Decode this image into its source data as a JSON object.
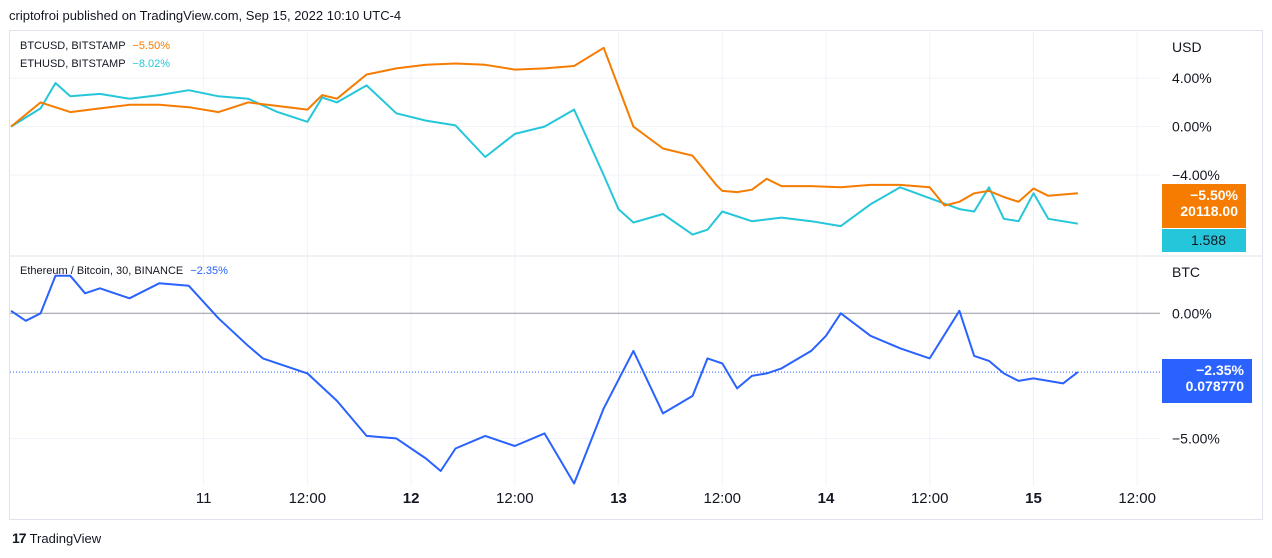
{
  "header": {
    "published": "criptofroi published on TradingView.com, Sep 15, 2022 10:10 UTC-4"
  },
  "footer": {
    "logo_text": "17",
    "brand": "TradingView"
  },
  "colors": {
    "btc": "#f57c00",
    "eth": "#26c6da",
    "ratio": "#2962ff",
    "grid": "#f0f3fa",
    "text": "#131722"
  },
  "top_pane": {
    "unit": "USD",
    "legend": [
      {
        "name": "BTCUSD, BITSTAMP",
        "change": "−5.50%",
        "color": "#f57c00"
      },
      {
        "name": "ETHUSD, BITSTAMP",
        "change": "−8.02%",
        "color": "#26c6da"
      }
    ],
    "tags": [
      {
        "line1": "−5.50%",
        "line2": "20118.00",
        "color": "#f57c00"
      },
      {
        "line1": "1.588",
        "color": "#26c6da"
      }
    ]
  },
  "bottom_pane": {
    "unit": "BTC",
    "legend": {
      "name": "Ethereum / Bitcoin, 30, BINANCE",
      "change": "−2.35%",
      "color": "#2962ff"
    },
    "tag": {
      "line1": "−2.35%",
      "line2": "0.078770",
      "color": "#2962ff"
    }
  },
  "x_axis_labels": [
    {
      "t": 0.65,
      "label": "11",
      "bold": false
    },
    {
      "t": 1.0,
      "label": "12:00",
      "bold": false
    },
    {
      "t": 1.35,
      "label": "12",
      "bold": true
    },
    {
      "t": 1.7,
      "label": "12:00",
      "bold": false
    },
    {
      "t": 2.05,
      "label": "13",
      "bold": true
    },
    {
      "t": 2.4,
      "label": "12:00",
      "bold": false
    },
    {
      "t": 2.75,
      "label": "14",
      "bold": true
    },
    {
      "t": 3.1,
      "label": "12:00",
      "bold": false
    },
    {
      "t": 3.45,
      "label": "15",
      "bold": true
    },
    {
      "t": 3.8,
      "label": "12:00",
      "bold": false
    }
  ],
  "chart_data": [
    {
      "type": "line",
      "title": "",
      "y_unit": "USD",
      "y_ticks": [
        "4.00%",
        "0.00%",
        "−4.00%"
      ],
      "y_tick_values": [
        4,
        0,
        -4
      ],
      "ylim": [
        -10.5,
        7.8
      ],
      "xlim": [
        0,
        3.85
      ],
      "grid": true,
      "legend_position": "top-left",
      "series": [
        {
          "name": "BTCUSD, BITSTAMP",
          "change": "−5.50%",
          "last_value": "20118.00",
          "x": [
            0,
            0.1,
            0.2,
            0.3,
            0.4,
            0.5,
            0.6,
            0.7,
            0.8,
            0.9,
            1.0,
            1.05,
            1.1,
            1.2,
            1.3,
            1.4,
            1.5,
            1.6,
            1.7,
            1.8,
            1.9,
            2.0,
            2.1,
            2.2,
            2.3,
            2.38,
            2.4,
            2.45,
            2.5,
            2.55,
            2.6,
            2.7,
            2.8,
            2.9,
            3.0,
            3.1,
            3.15,
            3.2,
            3.25,
            3.3,
            3.35,
            3.4,
            3.45,
            3.5,
            3.6
          ],
          "y": [
            0,
            2.0,
            1.2,
            1.5,
            1.8,
            1.8,
            1.6,
            1.2,
            2.0,
            1.7,
            1.4,
            2.6,
            2.3,
            4.3,
            4.8,
            5.1,
            5.2,
            5.1,
            4.7,
            4.8,
            5.0,
            6.5,
            0.0,
            -1.8,
            -2.4,
            -4.8,
            -5.3,
            -5.4,
            -5.2,
            -4.3,
            -4.9,
            -4.9,
            -5.0,
            -4.8,
            -4.8,
            -5.0,
            -6.5,
            -6.2,
            -5.5,
            -5.3,
            -5.8,
            -6.2,
            -5.1,
            -5.7,
            -5.5
          ]
        },
        {
          "name": "ETHUSD, BITSTAMP",
          "change": "−8.02%",
          "last_value": "1.588",
          "x": [
            0,
            0.1,
            0.15,
            0.2,
            0.3,
            0.4,
            0.5,
            0.6,
            0.7,
            0.8,
            0.9,
            1.0,
            1.05,
            1.1,
            1.2,
            1.3,
            1.4,
            1.5,
            1.6,
            1.7,
            1.8,
            1.9,
            2.0,
            2.05,
            2.1,
            2.2,
            2.3,
            2.35,
            2.4,
            2.5,
            2.6,
            2.7,
            2.8,
            2.9,
            3.0,
            3.1,
            3.2,
            3.25,
            3.3,
            3.35,
            3.4,
            3.45,
            3.5,
            3.6
          ],
          "y": [
            0,
            1.5,
            3.6,
            2.5,
            2.7,
            2.3,
            2.6,
            3.0,
            2.5,
            2.3,
            1.2,
            0.4,
            2.4,
            2.0,
            3.4,
            1.1,
            0.5,
            0.1,
            -2.5,
            -0.6,
            0.0,
            1.4,
            -4.0,
            -6.8,
            -7.9,
            -7.2,
            -8.9,
            -8.5,
            -7.0,
            -7.8,
            -7.5,
            -7.8,
            -8.2,
            -6.4,
            -5.0,
            -5.9,
            -6.8,
            -7.0,
            -5.0,
            -7.6,
            -7.8,
            -5.5,
            -7.6,
            -8.0
          ]
        }
      ],
      "markers": [
        {
          "series": "BTCUSD, BITSTAMP",
          "value": -5.5
        },
        {
          "series": "ETHUSD, BITSTAMP",
          "value": -8.02
        }
      ]
    },
    {
      "type": "line",
      "title": "",
      "y_unit": "BTC",
      "y_ticks": [
        "0.00%",
        "−5.00%"
      ],
      "y_tick_values": [
        0,
        -5
      ],
      "ylim": [
        -6.9,
        2.25
      ],
      "xlim": [
        0,
        3.85
      ],
      "grid": true,
      "legend_position": "top-left",
      "series": [
        {
          "name": "Ethereum / Bitcoin, 30, BINANCE",
          "change": "−2.35%",
          "last_value": "0.078770",
          "x": [
            0,
            0.05,
            0.1,
            0.15,
            0.2,
            0.25,
            0.3,
            0.4,
            0.5,
            0.6,
            0.7,
            0.8,
            0.85,
            0.9,
            1.0,
            1.1,
            1.2,
            1.3,
            1.4,
            1.45,
            1.5,
            1.6,
            1.7,
            1.8,
            1.9,
            2.0,
            2.1,
            2.2,
            2.3,
            2.35,
            2.4,
            2.45,
            2.5,
            2.55,
            2.6,
            2.7,
            2.75,
            2.8,
            2.9,
            3.0,
            3.1,
            3.2,
            3.25,
            3.3,
            3.35,
            3.4,
            3.45,
            3.5,
            3.55,
            3.6
          ],
          "y": [
            0.1,
            -0.3,
            0.0,
            1.5,
            1.5,
            0.8,
            1.0,
            0.6,
            1.2,
            1.1,
            -0.2,
            -1.3,
            -1.8,
            -2.0,
            -2.4,
            -3.5,
            -4.9,
            -5.0,
            -5.8,
            -6.3,
            -5.4,
            -4.9,
            -5.3,
            -4.8,
            -6.8,
            -3.8,
            -1.5,
            -4.0,
            -3.3,
            -1.8,
            -2.0,
            -3.0,
            -2.5,
            -2.4,
            -2.2,
            -1.5,
            -0.9,
            0.0,
            -0.9,
            -1.4,
            -1.8,
            0.1,
            -1.7,
            -1.9,
            -2.4,
            -2.7,
            -2.6,
            -2.7,
            -2.8,
            -2.35
          ]
        }
      ],
      "markers": [
        {
          "series": "Ethereum / Bitcoin, 30, BINANCE",
          "value": -2.35
        }
      ]
    }
  ]
}
